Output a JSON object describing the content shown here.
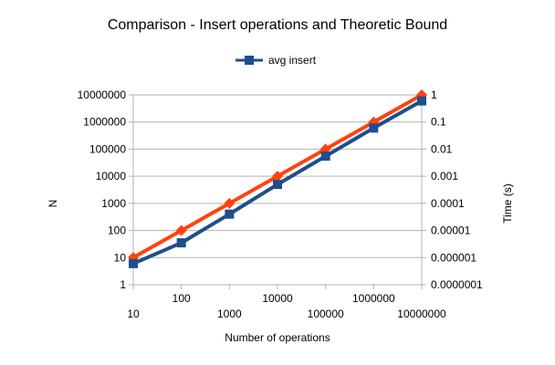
{
  "chart_data": {
    "type": "line",
    "title": "Comparison - Insert operations and Theoretic Bound",
    "xlabel": "Number of operations",
    "ylabel_left": "N",
    "ylabel_right": "Time (s)",
    "x_scale": "log",
    "y_left_scale": "log",
    "y_right_scale": "log",
    "x": [
      10,
      100,
      1000,
      10000,
      100000,
      1000000,
      10000000
    ],
    "x_tick_labels": [
      "10",
      "100",
      "1000",
      "10000",
      "100000",
      "1000000",
      "10000000"
    ],
    "ylim_left": [
      1,
      10000000
    ],
    "y_left_tick_labels": [
      "1",
      "10",
      "100",
      "1000",
      "10000",
      "100000",
      "1000000",
      "10000000"
    ],
    "ylim_right": [
      1e-07,
      1
    ],
    "y_right_tick_labels": [
      "0.0000001",
      "0.000001",
      "0.00001",
      "0.0001",
      "0.001",
      "0.01",
      "0.1",
      "1"
    ],
    "grid": "horizontal",
    "legend_position": "top-center",
    "series": [
      {
        "name": "avg insert",
        "axis": "right",
        "color": "#1f4e8c",
        "marker": "square",
        "values": [
          6e-07,
          3.5e-06,
          4e-05,
          0.0005,
          0.0055,
          0.06,
          0.6
        ]
      },
      {
        "name": "",
        "axis": "left",
        "color": "#ff420e",
        "marker": "diamond",
        "values": [
          10,
          100,
          1000,
          10000,
          100000,
          1000000,
          10000000
        ]
      }
    ]
  }
}
